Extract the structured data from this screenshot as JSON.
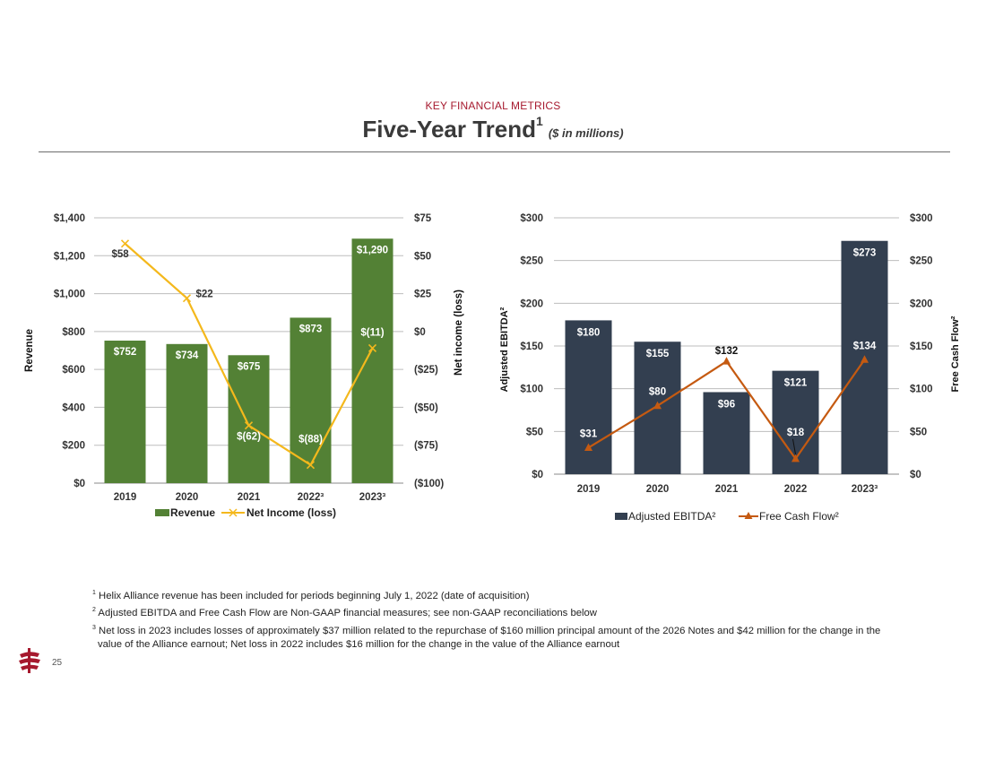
{
  "header": {
    "section": "KEY FINANCIAL METRICS",
    "title": "Five-Year Trend",
    "title_sup": "1",
    "units": "($ in millions)"
  },
  "colors": {
    "revenue_bar": "#538135",
    "net_income_line": "#f4b81c",
    "ebitda_bar": "#333f50",
    "fcf_line": "#c55a11",
    "accent": "#a6192e"
  },
  "chart_data": [
    {
      "type": "bar",
      "categories": [
        "2019",
        "2020",
        "2021",
        "2022³",
        "2023³"
      ],
      "series": [
        {
          "name": "Revenue",
          "type": "bar",
          "axis": "left",
          "values": [
            752,
            734,
            675,
            873,
            1290
          ],
          "labels": [
            "$752",
            "$734",
            "$675",
            "$873",
            "$1,290"
          ]
        },
        {
          "name": "Net Income (loss)",
          "type": "line",
          "axis": "right",
          "marker": "x",
          "values": [
            58,
            22,
            -62,
            -88,
            -11
          ],
          "labels": [
            "$58",
            "$22",
            "$(62)",
            "$(88)",
            "$(11)"
          ]
        }
      ],
      "ylabel_left": "Revenue",
      "ylabel_right": "Net income (loss)",
      "ylim_left": [
        0,
        1400
      ],
      "ylim_right": [
        -100,
        75
      ],
      "yticks_left": [
        "$0",
        "$200",
        "$400",
        "$600",
        "$800",
        "$1,000",
        "$1,200",
        "$1,400"
      ],
      "yticks_right": [
        "($100)",
        "($75)",
        "($50)",
        "($25)",
        "$0",
        "$25",
        "$50",
        "$75"
      ],
      "legend": [
        "Revenue",
        "Net Income (loss)"
      ],
      "legend_position": "bottom",
      "grid": true
    },
    {
      "type": "bar",
      "categories": [
        "2019",
        "2020",
        "2021",
        "2022",
        "2023³"
      ],
      "series": [
        {
          "name": "Adjusted EBITDA²",
          "type": "bar",
          "axis": "left",
          "values": [
            180,
            155,
            96,
            121,
            273
          ],
          "labels": [
            "$180",
            "$155",
            "$96",
            "$121",
            "$273"
          ]
        },
        {
          "name": "Free Cash Flow²",
          "type": "line",
          "axis": "right",
          "marker": "triangle",
          "values": [
            31,
            80,
            132,
            18,
            134
          ],
          "labels": [
            "$31",
            "$80",
            "$132",
            "$18",
            "$134"
          ]
        }
      ],
      "ylabel_left": "Adjusted EBITDA²",
      "ylabel_right": "Free Cash Flow²",
      "ylim_left": [
        0,
        300
      ],
      "ylim_right": [
        0,
        300
      ],
      "yticks_left": [
        "$0",
        "$50",
        "$100",
        "$150",
        "$200",
        "$250",
        "$300"
      ],
      "yticks_right": [
        "$0",
        "$50",
        "$100",
        "$150",
        "$200",
        "$250",
        "$300"
      ],
      "legend": [
        "Adjusted EBITDA²",
        "Free Cash Flow²"
      ],
      "legend_position": "bottom",
      "grid": true
    }
  ],
  "footnotes": [
    {
      "num": "1",
      "text": "Helix Alliance revenue has been included for periods beginning July 1, 2022 (date of acquisition)"
    },
    {
      "num": "2",
      "text": "Adjusted EBITDA and Free Cash Flow are Non-GAAP financial measures; see non-GAAP reconciliations below"
    },
    {
      "num": "3",
      "text": "Net loss in 2023 includes losses of approximately $37 million related to the repurchase of $160 million principal amount of the 2026 Notes and $42 million for the change in the value of the Alliance earnout; Net loss in 2022 includes $16 million for the change in the value of the Alliance earnout"
    }
  ],
  "page_number": "25"
}
